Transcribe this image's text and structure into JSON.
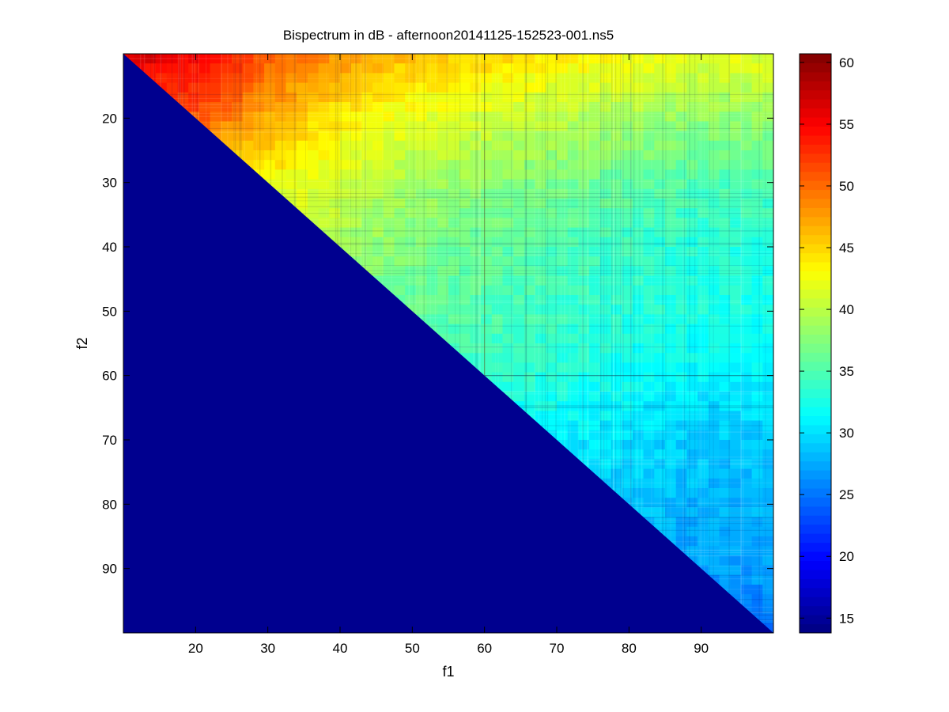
{
  "chart_data": {
    "type": "heatmap",
    "title": "Bispectrum in dB - afternoon20141125-152523-001.ns5",
    "xlabel": "f1",
    "ylabel": "f2",
    "xlim": [
      10,
      100
    ],
    "ylim": [
      10,
      100
    ],
    "y_reversed": true,
    "x_ticks": [
      20,
      30,
      40,
      50,
      60,
      70,
      80,
      90
    ],
    "y_ticks": [
      20,
      30,
      40,
      50,
      60,
      70,
      80,
      90
    ],
    "colorbar": {
      "colormap": "jet",
      "range": [
        13.8,
        60.7
      ],
      "ticks": [
        15,
        20,
        25,
        30,
        35,
        40,
        45,
        50,
        55,
        60
      ]
    },
    "below_diagonal_value": 13.8,
    "value_grid": {
      "f1": [
        10,
        20,
        30,
        40,
        50,
        60,
        70,
        80,
        90,
        100
      ],
      "f2": [
        10,
        20,
        30,
        40,
        50,
        60,
        70,
        80,
        90,
        100
      ],
      "values_db": [
        [
          57,
          55,
          51,
          48,
          46,
          45,
          44,
          43,
          42,
          42
        ],
        [
          null,
          51,
          47,
          44,
          42,
          41,
          40,
          39,
          38,
          38
        ],
        [
          null,
          null,
          43,
          41,
          39,
          38,
          37,
          36,
          35,
          35
        ],
        [
          null,
          null,
          null,
          39,
          37,
          36,
          35,
          34,
          33,
          33
        ],
        [
          null,
          null,
          null,
          null,
          36,
          35,
          34,
          33,
          33,
          32
        ],
        [
          null,
          null,
          null,
          null,
          null,
          34,
          33,
          32,
          31,
          31
        ],
        [
          null,
          null,
          null,
          null,
          null,
          null,
          31,
          30,
          29,
          29
        ],
        [
          null,
          null,
          null,
          null,
          null,
          null,
          null,
          29,
          28,
          28
        ],
        [
          null,
          null,
          null,
          null,
          null,
          null,
          null,
          null,
          27,
          27
        ],
        [
          null,
          null,
          null,
          null,
          null,
          null,
          null,
          null,
          null,
          25
        ]
      ]
    },
    "grid": false,
    "legend": "none"
  }
}
